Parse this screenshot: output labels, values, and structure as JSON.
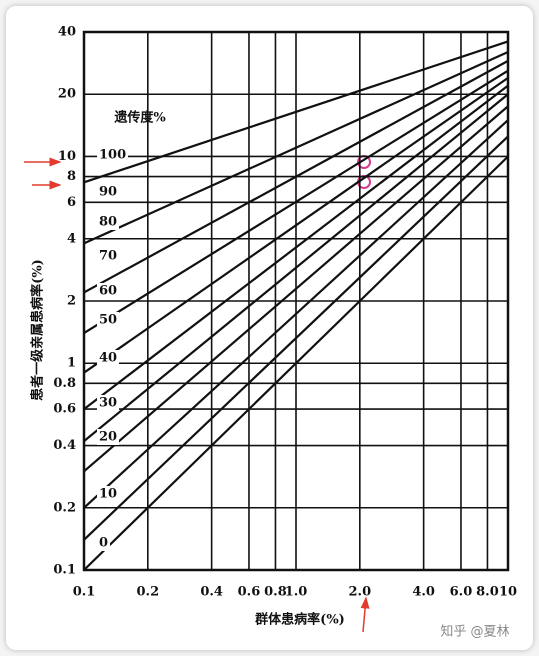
{
  "chart_data": {
    "type": "line",
    "x_label": "群体患病率(%)",
    "y_label": "患者一级亲属患病率(%)",
    "legend_title": "遗传度%",
    "xscale": "log",
    "yscale": "log",
    "grid": true,
    "color": "#111111",
    "xlim": [
      0.1,
      10
    ],
    "ylim": [
      0.1,
      40
    ],
    "xticks": [
      0.1,
      0.2,
      0.4,
      0.6,
      0.8,
      {
        "value": 1,
        "label": "1.0"
      },
      {
        "value": 2,
        "label": "2.0"
      },
      {
        "value": 4,
        "label": "4.0"
      },
      {
        "value": 6,
        "label": "6.0"
      },
      {
        "value": 8,
        "label": "8.0"
      },
      10
    ],
    "yticks": [
      0.1,
      0.2,
      0.4,
      0.6,
      0.8,
      1,
      2,
      4,
      6,
      8,
      10,
      20,
      40
    ],
    "x": [
      0.1,
      10
    ],
    "series": [
      {
        "name": "100",
        "values": [
          7.5,
          36
        ]
      },
      {
        "name": "90",
        "values": [
          3.8,
          32
        ]
      },
      {
        "name": "80",
        "values": [
          2.2,
          29
        ]
      },
      {
        "name": "70",
        "values": [
          1.4,
          26
        ]
      },
      {
        "name": "60",
        "values": [
          0.9,
          24
        ]
      },
      {
        "name": "50",
        "values": [
          0.6,
          22
        ]
      },
      {
        "name": "40",
        "values": [
          0.42,
          20
        ]
      },
      {
        "name": "30",
        "values": [
          0.3,
          17.5
        ]
      },
      {
        "name": "20",
        "values": [
          0.2,
          15
        ]
      },
      {
        "name": "10",
        "values": [
          0.14,
          12.5
        ]
      },
      {
        "name": "0",
        "values": [
          0.1,
          10
        ]
      }
    ]
  },
  "watermark": "知乎 @夏林"
}
